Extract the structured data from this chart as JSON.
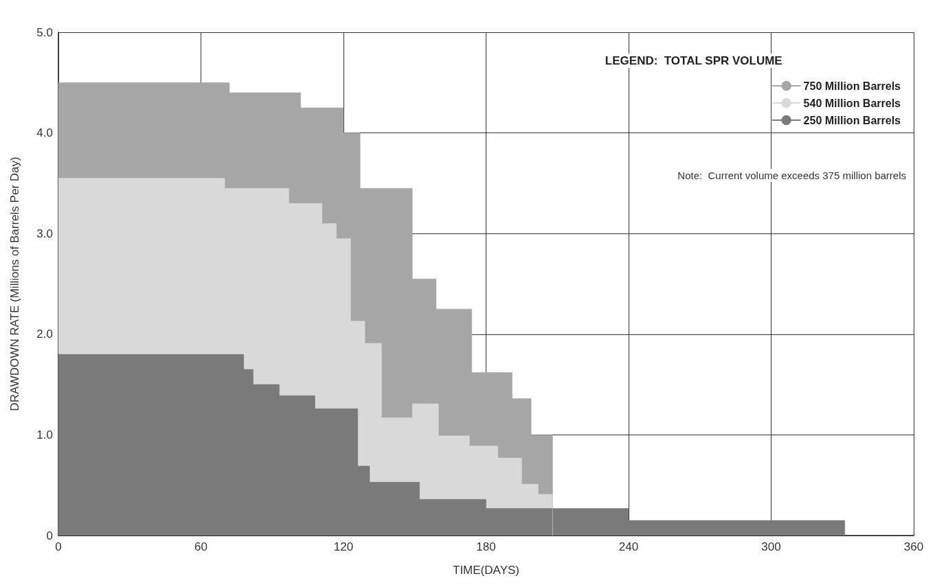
{
  "chart_data": {
    "type": "step",
    "xlabel": "TIME(DAYS)",
    "ylabel": "DRAWDOWN RATE (Millions of Barrels Per Day)",
    "legend_title": "LEGEND:  TOTAL SPR VOLUME",
    "annotations": [
      "Note:  Current volume exceeds 375 million barrels"
    ],
    "series": [
      {
        "name": "750 Million Barrels",
        "type": "area",
        "color": "#a6a6a6",
        "x": [
          0,
          72,
          102,
          120,
          127,
          149,
          159,
          174,
          191,
          199,
          208
        ],
        "values": [
          4.5,
          4.4,
          4.25,
          4.0,
          3.45,
          2.55,
          2.25,
          1.62,
          1.36,
          1.0,
          0
        ]
      },
      {
        "name": "540 Million Barrels",
        "type": "area",
        "color": "#d9d9d9",
        "x": [
          0,
          70,
          97,
          111,
          117,
          123,
          129,
          136,
          149,
          160,
          173,
          185,
          195,
          202,
          208
        ],
        "values": [
          3.55,
          3.45,
          3.3,
          3.1,
          2.95,
          2.13,
          1.91,
          1.17,
          1.31,
          0.99,
          0.89,
          0.77,
          0.51,
          0.41,
          0
        ]
      },
      {
        "name": "250 Million Barrels",
        "type": "area",
        "color": "#7a7a7a",
        "x": [
          0,
          78,
          82,
          93,
          108,
          126,
          131,
          152,
          180,
          240,
          331
        ],
        "values": [
          1.8,
          1.65,
          1.5,
          1.39,
          1.26,
          0.69,
          0.53,
          0.36,
          0.27,
          0.15,
          0
        ]
      }
    ],
    "xlim": [
      0,
      360
    ],
    "xticks": [
      0,
      60,
      120,
      180,
      240,
      300,
      360
    ],
    "ylim": [
      0,
      5
    ],
    "yticks": [
      0,
      {
        "value": 1,
        "label": "1.0"
      },
      {
        "value": 2,
        "label": "2.0"
      },
      {
        "value": 3,
        "label": "3.0"
      },
      {
        "value": 4,
        "label": "4.0"
      },
      {
        "value": 5,
        "label": "5.0"
      }
    ],
    "grid": true,
    "legend": "top right",
    "line_style": "solid",
    "marker": "none"
  }
}
